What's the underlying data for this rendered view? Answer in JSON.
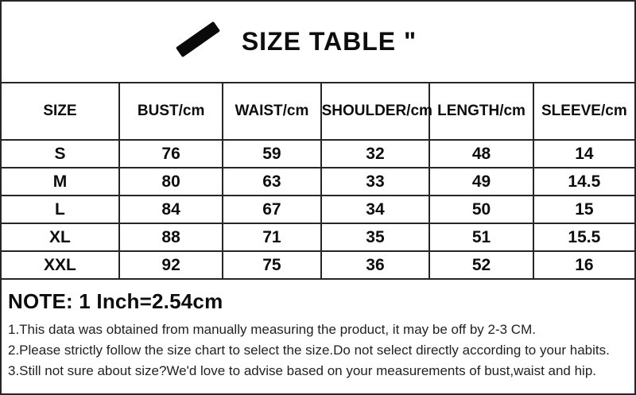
{
  "title": {
    "text": "SIZE TABLE \""
  },
  "table": {
    "headers": [
      "SIZE",
      "BUST/cm",
      "WAIST/cm",
      "SHOULDER/cm",
      "LENGTH/cm",
      "SLEEVE/cm"
    ],
    "rows": [
      [
        "S",
        "76",
        "59",
        "32",
        "48",
        "14"
      ],
      [
        "M",
        "80",
        "63",
        "33",
        "49",
        "14.5"
      ],
      [
        "L",
        "84",
        "67",
        "34",
        "50",
        "15"
      ],
      [
        "XL",
        "88",
        "71",
        "35",
        "51",
        "15.5"
      ],
      [
        "XXL",
        "92",
        "75",
        "36",
        "52",
        "16"
      ]
    ]
  },
  "notes": {
    "heading": "NOTE: 1 Inch=2.54cm",
    "items": [
      "1.This data was obtained from manually measuring the product, it may be off by 2-3 CM.",
      "2.Please strictly follow the size chart to select the size.Do not select directly according to your habits.",
      "3.Still not sure about size?We'd love to advise based on your measurements of bust,waist and hip."
    ]
  },
  "colors": {
    "border": "#262626",
    "text": "#111111",
    "note-text": "#222222"
  }
}
